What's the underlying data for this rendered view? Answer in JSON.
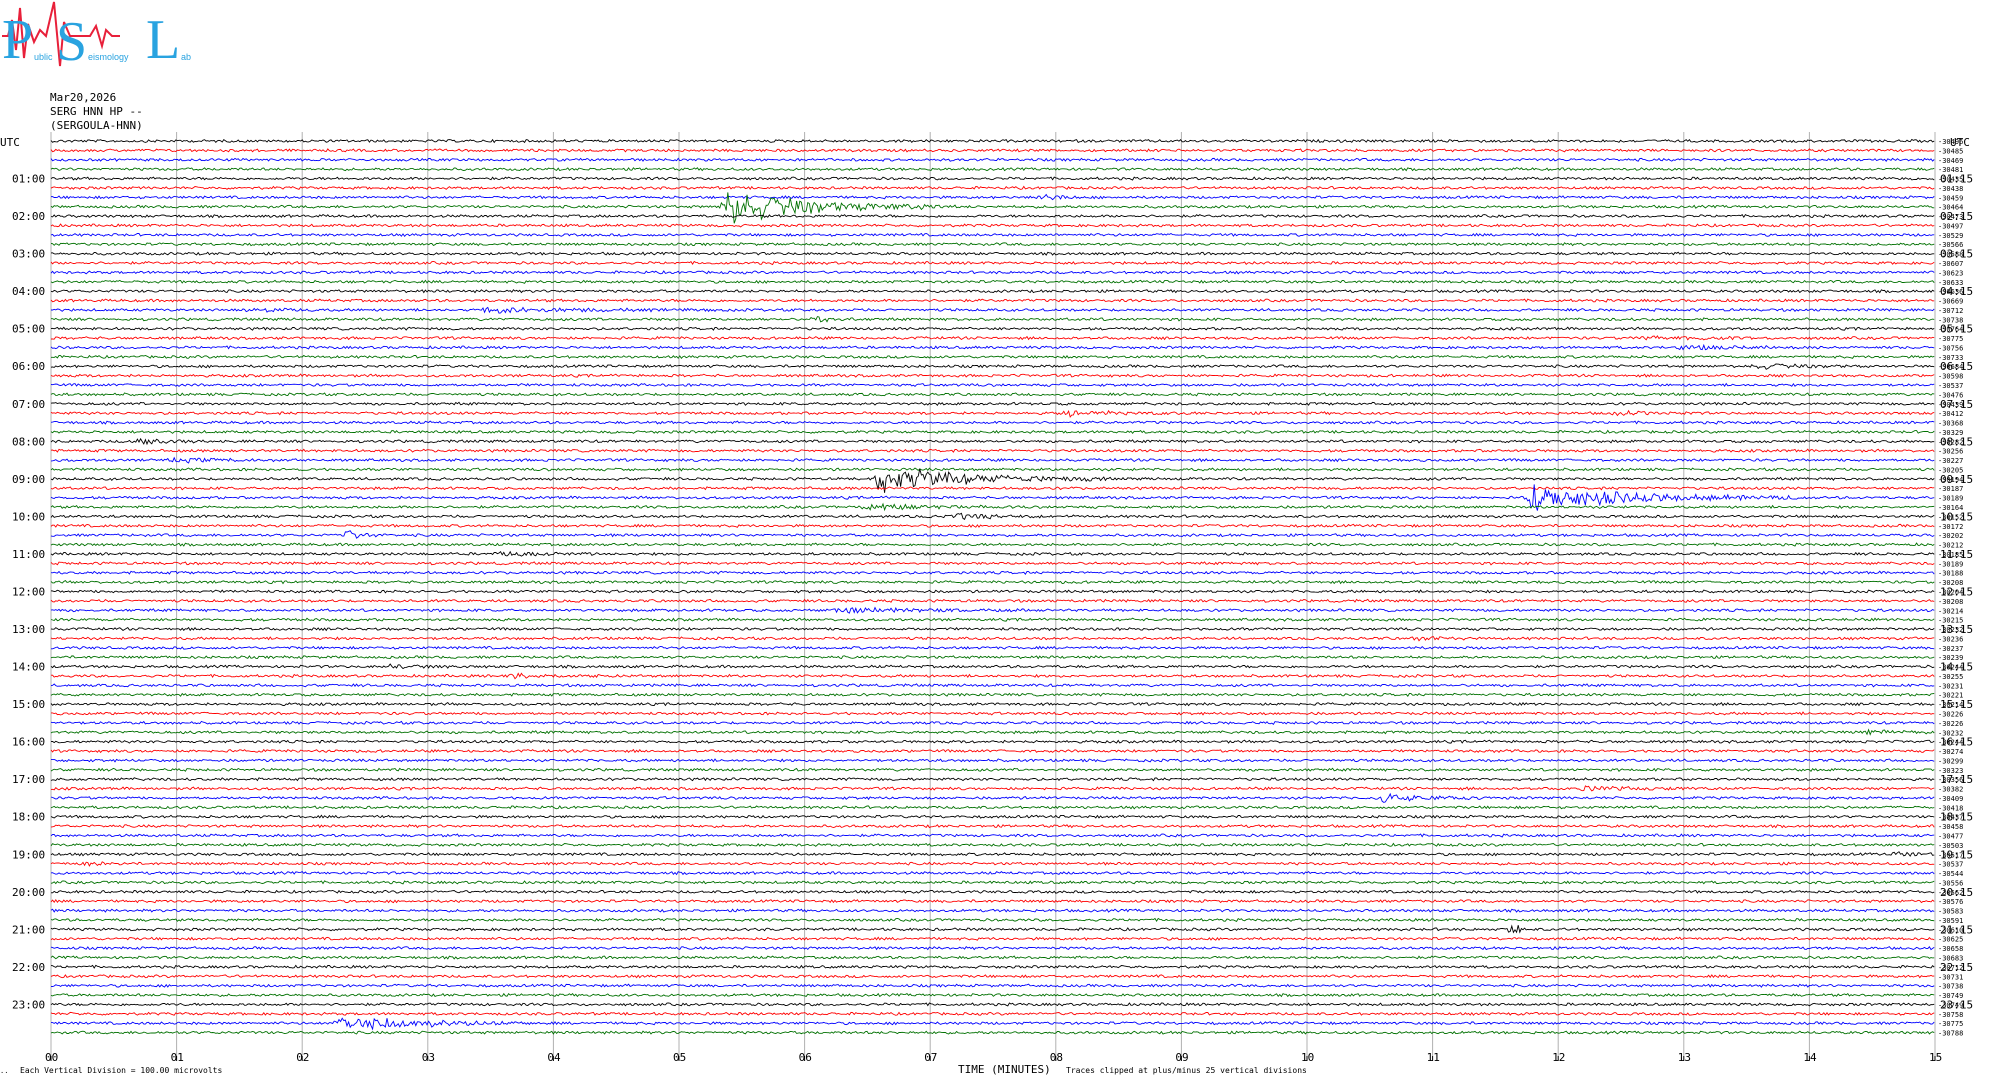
{
  "logo": {
    "letters": [
      "P",
      "S",
      "L"
    ],
    "words": [
      "ublic",
      "eismology",
      "ab"
    ],
    "colors": {
      "letters": "#29a3e0",
      "trace": "#e8203a"
    }
  },
  "header": {
    "date": "Mar20,2026",
    "channel": "SERG HNN HP --",
    "station": "(SERGOULA-HNN)"
  },
  "left_axis_title": "UTC",
  "right_axis_title": "UTC",
  "footer": {
    "corner": "..",
    "scale_note": "Each Vertical Division =  100.00 microvolts",
    "xlabel": "TIME (MINUTES)",
    "clip_note": "Traces clipped at plus/minus 25 vertical divisions"
  },
  "chart_data": {
    "type": "line",
    "trace_colors": [
      "#000000",
      "#ff0000",
      "#0000ff",
      "#007000"
    ],
    "grid_color": "#b0b0b0",
    "x_range_minutes": [
      0,
      15
    ],
    "x_ticks": [
      "00",
      "01",
      "02",
      "03",
      "04",
      "05",
      "06",
      "07",
      "08",
      "09",
      "10",
      "11",
      "12",
      "13",
      "14",
      "15"
    ],
    "row_minutes": 15,
    "row_count": 96,
    "left_hour_labels": [
      "01:00",
      "02:00",
      "03:00",
      "04:00",
      "05:00",
      "06:00",
      "07:00",
      "08:00",
      "09:00",
      "10:00",
      "11:00",
      "12:00",
      "13:00",
      "14:00",
      "15:00",
      "16:00",
      "17:00",
      "18:00",
      "19:00",
      "20:00",
      "21:00",
      "22:00",
      "23:00"
    ],
    "right_hour_labels": [
      "01:15",
      "02:15",
      "03:15",
      "04:15",
      "05:15",
      "06:15",
      "07:15",
      "08:15",
      "09:15",
      "10:15",
      "11:15",
      "12:15",
      "13:15",
      "14:15",
      "15:15",
      "16:15",
      "17:15",
      "18:15",
      "19:15",
      "20:15",
      "21:15",
      "22:15",
      "23:15"
    ],
    "row_offsets": [
      "-30496",
      "-30485",
      "-30469",
      "-30481",
      "-30435",
      "-30438",
      "-30459",
      "-30464",
      "-30473",
      "-30497",
      "-30529",
      "-30566",
      "-30588",
      "-30607",
      "-30623",
      "-30633",
      "-30636",
      "-30669",
      "-30712",
      "-30738",
      "-30764",
      "-30775",
      "-30756",
      "-30733",
      "-30684",
      "-30598",
      "-30537",
      "-30476",
      "-30439",
      "-30412",
      "-30368",
      "-30329",
      "-30282",
      "-30256",
      "-30227",
      "-30205",
      "-30194",
      "-30187",
      "-30189",
      "-30164",
      "-30152",
      "-30172",
      "-30202",
      "-30212",
      "-30185",
      "-30189",
      "-30188",
      "-30208",
      "-30204",
      "-30208",
      "-30214",
      "-30215",
      "-30232",
      "-30236",
      "-30237",
      "-30239",
      "-30244",
      "-30255",
      "-30231",
      "-30221",
      "-30214",
      "-30226",
      "-30226",
      "-30232",
      "-30244",
      "-30274",
      "-30299",
      "-30323",
      "-30356",
      "-30382",
      "-30409",
      "-30418",
      "-30437",
      "-30458",
      "-30477",
      "-30503",
      "-30517",
      "-30537",
      "-30544",
      "-30556",
      "-30562",
      "-30576",
      "-30583",
      "-30591",
      "-30610",
      "-30625",
      "-30658",
      "-30683",
      "-30712",
      "-30731",
      "-30738",
      "-30749",
      "-30749",
      "-30758",
      "-30775",
      "-30788"
    ],
    "events": [
      {
        "row": 7,
        "minute": 5.4,
        "amplitude": 20,
        "duration_min": 1.8
      },
      {
        "row": 6,
        "minute": 7.9,
        "amplitude": 4,
        "duration_min": 0.3
      },
      {
        "row": 36,
        "minute": 6.6,
        "amplitude": 16,
        "duration_min": 1.8
      },
      {
        "row": 38,
        "minute": 11.8,
        "amplitude": 14,
        "duration_min": 2.2
      },
      {
        "row": 39,
        "minute": 6.5,
        "amplitude": 4,
        "duration_min": 1.2
      },
      {
        "row": 40,
        "minute": 7.2,
        "amplitude": 3,
        "duration_min": 0.8
      },
      {
        "row": 42,
        "minute": 2.35,
        "amplitude": 6,
        "duration_min": 0.3
      },
      {
        "row": 94,
        "minute": 2.3,
        "amplitude": 10,
        "duration_min": 1.6
      },
      {
        "row": 18,
        "minute": 3.5,
        "amplitude": 3,
        "duration_min": 1.8
      },
      {
        "row": 18,
        "minute": 1.6,
        "amplitude": 3,
        "duration_min": 0.5
      },
      {
        "row": 19,
        "minute": 6.1,
        "amplitude": 3,
        "duration_min": 0.3
      },
      {
        "row": 21,
        "minute": 12.7,
        "amplitude": 2,
        "duration_min": 1.0
      },
      {
        "row": 22,
        "minute": 13.0,
        "amplitude": 2,
        "duration_min": 1.4
      },
      {
        "row": 24,
        "minute": 13.6,
        "amplitude": 3,
        "duration_min": 0.8
      },
      {
        "row": 29,
        "minute": 8.1,
        "amplitude": 3,
        "duration_min": 1.0
      },
      {
        "row": 29,
        "minute": 12.5,
        "amplitude": 2,
        "duration_min": 0.6
      },
      {
        "row": 32,
        "minute": 0.7,
        "amplitude": 3,
        "duration_min": 0.7
      },
      {
        "row": 34,
        "minute": 1.0,
        "amplitude": 2,
        "duration_min": 1.0
      },
      {
        "row": 44,
        "minute": 3.6,
        "amplitude": 2,
        "duration_min": 0.8
      },
      {
        "row": 50,
        "minute": 6.3,
        "amplitude": 3,
        "duration_min": 1.5
      },
      {
        "row": 53,
        "minute": 10.9,
        "amplitude": 2,
        "duration_min": 0.5
      },
      {
        "row": 57,
        "minute": 3.7,
        "amplitude": 3,
        "duration_min": 0.8
      },
      {
        "row": 56,
        "minute": 2.7,
        "amplitude": 2,
        "duration_min": 0.6
      },
      {
        "row": 63,
        "minute": 14.5,
        "amplitude": 2,
        "duration_min": 0.7
      },
      {
        "row": 70,
        "minute": 10.6,
        "amplitude": 4,
        "duration_min": 1.0
      },
      {
        "row": 69,
        "minute": 12.2,
        "amplitude": 2,
        "duration_min": 1.2
      },
      {
        "row": 84,
        "minute": 11.65,
        "amplitude": 8,
        "duration_min": 0.1
      },
      {
        "row": 76,
        "minute": 14.7,
        "amplitude": 2,
        "duration_min": 0.5
      },
      {
        "row": 77,
        "minute": 0.3,
        "amplitude": 2,
        "duration_min": 0.3
      }
    ]
  }
}
